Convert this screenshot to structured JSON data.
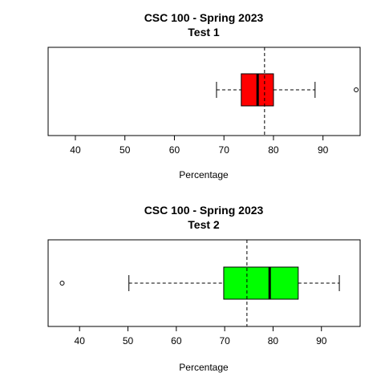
{
  "chart_data": [
    {
      "type": "boxplot",
      "orientation": "horizontal",
      "title": "CSC 100 - Spring 2023",
      "subtitle": "Test 1",
      "xlabel": "Percentage",
      "xlim": [
        34.5,
        97.5
      ],
      "ticks": [
        40,
        50,
        60,
        70,
        80,
        90
      ],
      "tick_labels": [
        "40",
        "50",
        "60",
        "70",
        "80",
        "90"
      ],
      "box_color": "#ff0000",
      "whisker_low": 68.5,
      "q1": 73.5,
      "median": 76.8,
      "q3": 80.0,
      "whisker_high": 88.4,
      "outliers": [
        96.7
      ],
      "mean_line": 78.2,
      "grid": false
    },
    {
      "type": "boxplot",
      "orientation": "horizontal",
      "title": "CSC 100 - Spring 2023",
      "subtitle": "Test 2",
      "xlabel": "Percentage",
      "xlim": [
        33.5,
        98.0
      ],
      "ticks": [
        40,
        50,
        60,
        70,
        80,
        90
      ],
      "tick_labels": [
        "40",
        "50",
        "60",
        "70",
        "80",
        "90"
      ],
      "box_color": "#00ff00",
      "whisker_low": 50.2,
      "q1": 69.8,
      "median": 79.3,
      "q3": 85.2,
      "whisker_high": 93.7,
      "outliers": [
        36.4
      ],
      "mean_line": 74.6,
      "grid": false
    }
  ]
}
